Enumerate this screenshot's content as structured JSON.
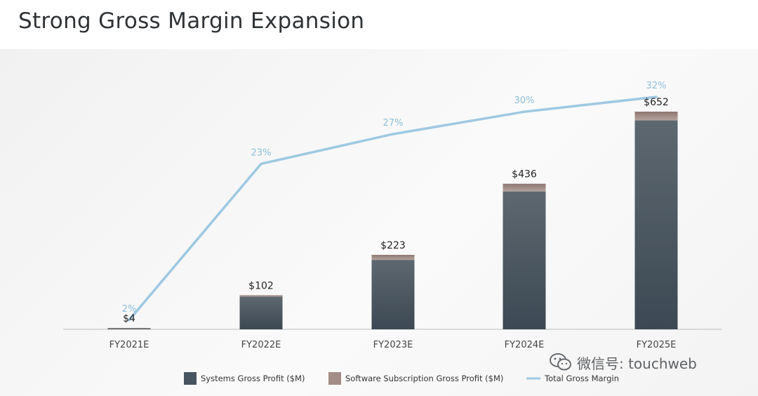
{
  "page": {
    "title": "Strong Gross Margin Expansion"
  },
  "chart_data": {
    "type": "bar",
    "categories": [
      "FY2021E",
      "FY2022E",
      "FY2023E",
      "FY2024E",
      "FY2025E"
    ],
    "stacked": true,
    "series": [
      {
        "name": "Systems Gross Profit ($M)",
        "values": [
          2,
          98,
          208,
          413,
          626
        ],
        "color": "#48545f"
      },
      {
        "name": "Software Subscription Gross Profit ($M)",
        "values": [
          2,
          4,
          15,
          23,
          26
        ],
        "color": "#a38c85"
      }
    ],
    "totals": [
      4,
      102,
      223,
      436,
      652
    ],
    "total_labels": [
      "$4",
      "$102",
      "$223",
      "$436",
      "$652"
    ],
    "line": {
      "name": "Total Gross Margin",
      "values": [
        2,
        23,
        27,
        30,
        32
      ],
      "labels": [
        "2%",
        "23%",
        "27%",
        "30%",
        "32%"
      ],
      "color": "#9ec9e2"
    },
    "legend_position": "bottom",
    "grid": false
  },
  "watermark": {
    "text": "微信号: touchweb",
    "icon": "wechat-icon"
  }
}
